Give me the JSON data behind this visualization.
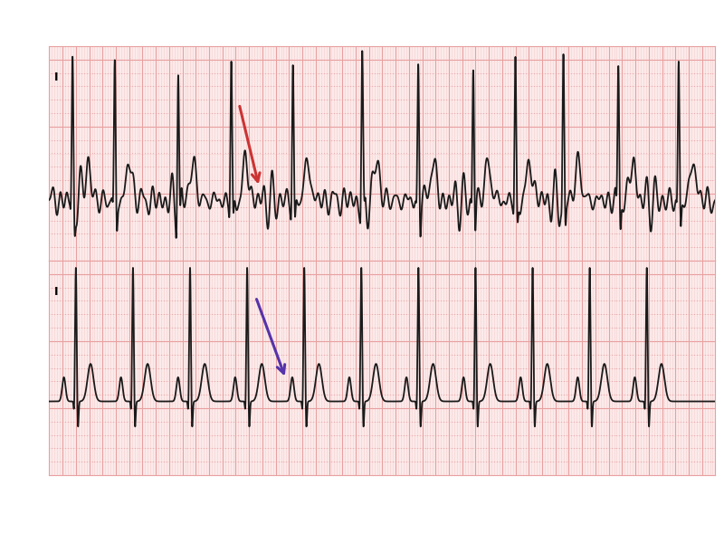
{
  "fig_width": 8.0,
  "fig_height": 6.0,
  "bg_color": "#ffffff",
  "ecg_paper_bg": "#fceaea",
  "ecg_paper_major_grid": "#e8a0a0",
  "ecg_paper_minor_grid": "#f5d0d0",
  "ecg_color": "#1a1a1a",
  "ecg_linewidth": 1.3,
  "label_I": "I",
  "arrow_top_color": "#cc3333",
  "arrow_bot_color": "#5533aa"
}
